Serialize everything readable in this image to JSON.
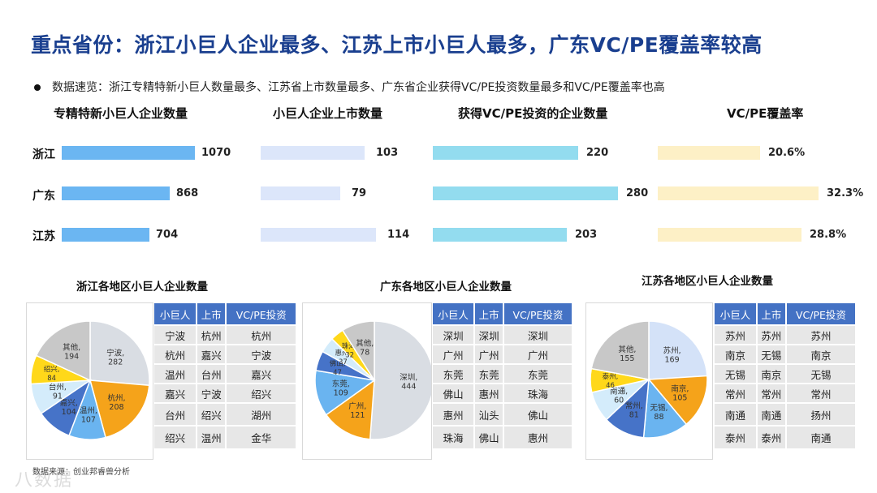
{
  "title": "重点省份：浙江小巨人企业最多、江苏上市小巨人最多，广东VC/PE覆盖率较高",
  "bullet": "数据速览：浙江专精特新小巨人数量最多、江苏省上市数量最多、广东省企业获得VC/PE投资数量最多和VC/PE覆盖率也高",
  "provinces": [
    "浙江",
    "广东",
    "江苏"
  ],
  "bar_charts": [
    {
      "title": "专精特新小巨人企业数量",
      "values": [
        1070,
        868,
        704
      ],
      "labels": [
        "1070",
        "868",
        "704"
      ],
      "color": "#6bb6f2",
      "max": 1070
    },
    {
      "title": "小巨人企业上市数量",
      "values": [
        103,
        79,
        114
      ],
      "labels": [
        "103",
        "79",
        "114"
      ],
      "color": "#dce6fa",
      "max": 114
    },
    {
      "title": "获得VC/PE投资的企业数量",
      "values": [
        220,
        280,
        203
      ],
      "labels": [
        "220",
        "280",
        "203"
      ],
      "color": "#93dcef",
      "max": 280
    },
    {
      "title": "VC/PE覆盖率",
      "values": [
        20.6,
        32.3,
        28.8
      ],
      "labels": [
        "20.6%",
        "32.3%",
        "28.8%"
      ],
      "color": "#fdf0c6",
      "max": 32.3
    }
  ],
  "chart_data": [
    {
      "type": "bar",
      "title": "专精特新小巨人企业数量",
      "categories": [
        "浙江",
        "广东",
        "江苏"
      ],
      "values": [
        1070,
        868,
        704
      ]
    },
    {
      "type": "bar",
      "title": "小巨人企业上市数量",
      "categories": [
        "浙江",
        "广东",
        "江苏"
      ],
      "values": [
        103,
        79,
        114
      ]
    },
    {
      "type": "bar",
      "title": "获得VC/PE投资的企业数量",
      "categories": [
        "浙江",
        "广东",
        "江苏"
      ],
      "values": [
        220,
        280,
        203
      ]
    },
    {
      "type": "bar",
      "title": "VC/PE覆盖率",
      "categories": [
        "浙江",
        "广东",
        "江苏"
      ],
      "values": [
        20.6,
        32.3,
        28.8
      ],
      "unit": "%"
    },
    {
      "type": "pie",
      "title": "浙江各地区小巨人企业数量",
      "labels": [
        "宁波",
        "杭州",
        "温州",
        "嘉兴",
        "台州",
        "绍兴",
        "其他"
      ],
      "values": [
        282,
        208,
        107,
        104,
        91,
        84,
        194
      ],
      "colors": [
        "#d9dde3",
        "#f5a31a",
        "#6ab4f0",
        "#4673c8",
        "#d4ecfb",
        "#ffd81a",
        "#c8c8c8"
      ]
    },
    {
      "type": "pie",
      "title": "广东各地区小巨人企业数量",
      "labels": [
        "深圳",
        "广州",
        "东莞",
        "佛山",
        "惠州",
        "珠海",
        "其他"
      ],
      "values": [
        444,
        121,
        109,
        47,
        37,
        32,
        78
      ],
      "colors": [
        "#d9dde3",
        "#f5a31a",
        "#6ab4f0",
        "#4673c8",
        "#d4ecfb",
        "#ffd81a",
        "#c8c8c8"
      ]
    },
    {
      "type": "pie",
      "title": "江苏各地区小巨人企业数量",
      "labels": [
        "苏州",
        "南京",
        "无锡",
        "常州",
        "南通",
        "泰州",
        "其他"
      ],
      "values": [
        169,
        105,
        88,
        81,
        60,
        46,
        155
      ],
      "colors": [
        "#d4e2f8",
        "#f5a31a",
        "#6ab4f0",
        "#4673c8",
        "#d4ecfb",
        "#ffd81a",
        "#c8c8c8"
      ]
    }
  ],
  "tables": [
    {
      "headers": [
        "小巨人",
        "上市",
        "VC/PE投资"
      ],
      "rows": [
        [
          "宁波",
          "杭州",
          "杭州"
        ],
        [
          "杭州",
          "嘉兴",
          "宁波"
        ],
        [
          "温州",
          "台州",
          "嘉兴"
        ],
        [
          "嘉兴",
          "宁波",
          "绍兴"
        ],
        [
          "台州",
          "绍兴",
          "湖州"
        ],
        [
          "绍兴",
          "温州",
          "金华"
        ]
      ]
    },
    {
      "headers": [
        "小巨人",
        "上市",
        "VC/PE投资"
      ],
      "rows": [
        [
          "深圳",
          "深圳",
          "深圳"
        ],
        [
          "广州",
          "广州",
          "广州"
        ],
        [
          "东莞",
          "东莞",
          "东莞"
        ],
        [
          "佛山",
          "惠州",
          "珠海"
        ],
        [
          "惠州",
          "汕头",
          "佛山"
        ],
        [
          "珠海",
          "佛山",
          "惠州"
        ]
      ]
    },
    {
      "headers": [
        "小巨人",
        "上市",
        "VC/PE投资"
      ],
      "rows": [
        [
          "苏州",
          "苏州",
          "苏州"
        ],
        [
          "南京",
          "无锡",
          "南京"
        ],
        [
          "无锡",
          "南京",
          "无锡"
        ],
        [
          "常州",
          "常州",
          "常州"
        ],
        [
          "南通",
          "南通",
          "扬州"
        ],
        [
          "泰州",
          "泰州",
          "南通"
        ]
      ]
    }
  ],
  "source": "数据来源：创业邦睿兽分析",
  "watermark": "八数据"
}
